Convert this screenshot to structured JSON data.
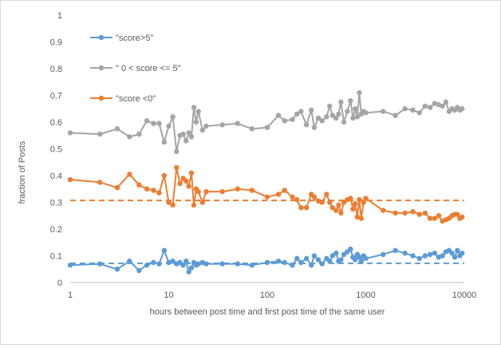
{
  "chart_data": {
    "type": "line",
    "xscale": "log",
    "xlim": [
      1,
      10000
    ],
    "ylim": [
      0,
      1
    ],
    "grid": false,
    "legend_position": "top-left",
    "xlabel": "hours between  post time and first post time of the same user",
    "ylabel": "fraction of Posts",
    "x_ticks": [
      "1",
      "10",
      "100",
      "1000",
      "10000"
    ],
    "y_ticks": [
      "0",
      "0.1",
      "0.2",
      "0.3",
      "0.4",
      "0.5",
      "0.6",
      "0.7",
      "0.8",
      "0.9",
      "1"
    ],
    "series": [
      {
        "name": "\"score>5\"",
        "color": "#5b9bd5",
        "x": [
          1,
          2,
          3,
          4,
          5,
          6,
          7,
          8,
          9,
          10,
          11,
          12,
          13,
          14,
          15,
          16,
          17,
          18,
          19,
          20,
          22,
          24,
          35,
          50,
          70,
          100,
          130,
          150,
          180,
          200,
          220,
          250,
          280,
          300,
          330,
          360,
          400,
          430,
          460,
          500,
          530,
          560,
          600,
          650,
          700,
          740,
          780,
          820,
          860,
          900,
          950,
          1000,
          1500,
          2000,
          2500,
          3000,
          3500,
          4000,
          4500,
          5000,
          5500,
          6000,
          6500,
          7000,
          7500,
          8000,
          8500,
          9000,
          9500
        ],
        "values": [
          0.065,
          0.07,
          0.05,
          0.08,
          0.045,
          0.065,
          0.075,
          0.07,
          0.12,
          0.075,
          0.08,
          0.07,
          0.075,
          0.065,
          0.08,
          0.04,
          0.055,
          0.075,
          0.065,
          0.07,
          0.075,
          0.07,
          0.07,
          0.07,
          0.065,
          0.075,
          0.08,
          0.075,
          0.065,
          0.09,
          0.075,
          0.09,
          0.065,
          0.1,
          0.085,
          0.07,
          0.09,
          0.08,
          0.1,
          0.11,
          0.08,
          0.085,
          0.105,
          0.115,
          0.125,
          0.095,
          0.085,
          0.105,
          0.095,
          0.08,
          0.1,
          0.09,
          0.105,
          0.12,
          0.11,
          0.1,
          0.09,
          0.1,
          0.105,
          0.11,
          0.095,
          0.1,
          0.115,
          0.12,
          0.11,
          0.095,
          0.12,
          0.1,
          0.11
        ],
        "trendline": 0.072
      },
      {
        "name": "\" 0 < score <= 5\"",
        "color": "#a5a5a5",
        "x": [
          1,
          2,
          3,
          4,
          5,
          6,
          7,
          8,
          9,
          10,
          11,
          12,
          13,
          14,
          15,
          16,
          17,
          18,
          19,
          20,
          22,
          24,
          35,
          50,
          70,
          100,
          130,
          150,
          180,
          200,
          220,
          250,
          280,
          300,
          330,
          360,
          400,
          430,
          460,
          500,
          530,
          560,
          600,
          650,
          700,
          740,
          780,
          820,
          860,
          900,
          950,
          1000,
          1500,
          2000,
          2500,
          3000,
          3500,
          4000,
          4500,
          5000,
          5500,
          6000,
          6500,
          7000,
          7500,
          8000,
          8500,
          9000,
          9500
        ],
        "values": [
          0.56,
          0.555,
          0.575,
          0.545,
          0.555,
          0.605,
          0.595,
          0.595,
          0.525,
          0.585,
          0.62,
          0.49,
          0.55,
          0.555,
          0.53,
          0.56,
          0.545,
          0.655,
          0.6,
          0.64,
          0.57,
          0.585,
          0.59,
          0.595,
          0.575,
          0.58,
          0.625,
          0.605,
          0.61,
          0.63,
          0.64,
          0.59,
          0.645,
          0.58,
          0.615,
          0.605,
          0.62,
          0.66,
          0.625,
          0.615,
          0.63,
          0.675,
          0.6,
          0.64,
          0.68,
          0.615,
          0.65,
          0.62,
          0.71,
          0.63,
          0.64,
          0.635,
          0.64,
          0.625,
          0.65,
          0.645,
          0.635,
          0.66,
          0.655,
          0.67,
          0.665,
          0.66,
          0.675,
          0.64,
          0.65,
          0.645,
          0.655,
          0.645,
          0.65
        ]
      },
      {
        "name": "\"score <0\"",
        "color": "#ed7d31",
        "x": [
          1,
          2,
          3,
          4,
          5,
          6,
          7,
          8,
          9,
          10,
          11,
          12,
          13,
          14,
          15,
          16,
          17,
          18,
          19,
          20,
          22,
          24,
          35,
          50,
          70,
          100,
          130,
          150,
          180,
          200,
          220,
          250,
          280,
          300,
          330,
          360,
          400,
          430,
          460,
          500,
          530,
          560,
          600,
          650,
          700,
          740,
          780,
          820,
          860,
          900,
          950,
          1000,
          1500,
          2000,
          2500,
          3000,
          3500,
          4000,
          4500,
          5000,
          5500,
          6000,
          6500,
          7000,
          7500,
          8000,
          8500,
          9000,
          9500
        ],
        "values": [
          0.385,
          0.375,
          0.355,
          0.405,
          0.365,
          0.35,
          0.345,
          0.335,
          0.4,
          0.3,
          0.29,
          0.43,
          0.37,
          0.39,
          0.38,
          0.36,
          0.41,
          0.29,
          0.35,
          0.34,
          0.3,
          0.34,
          0.34,
          0.35,
          0.345,
          0.32,
          0.33,
          0.345,
          0.32,
          0.31,
          0.28,
          0.28,
          0.33,
          0.32,
          0.305,
          0.3,
          0.33,
          0.3,
          0.28,
          0.27,
          0.29,
          0.26,
          0.3,
          0.31,
          0.315,
          0.275,
          0.295,
          0.245,
          0.31,
          0.24,
          0.3,
          0.315,
          0.27,
          0.26,
          0.26,
          0.265,
          0.255,
          0.26,
          0.24,
          0.24,
          0.25,
          0.23,
          0.235,
          0.24,
          0.25,
          0.255,
          0.255,
          0.24,
          0.245
        ],
        "trendline": 0.307
      }
    ]
  }
}
